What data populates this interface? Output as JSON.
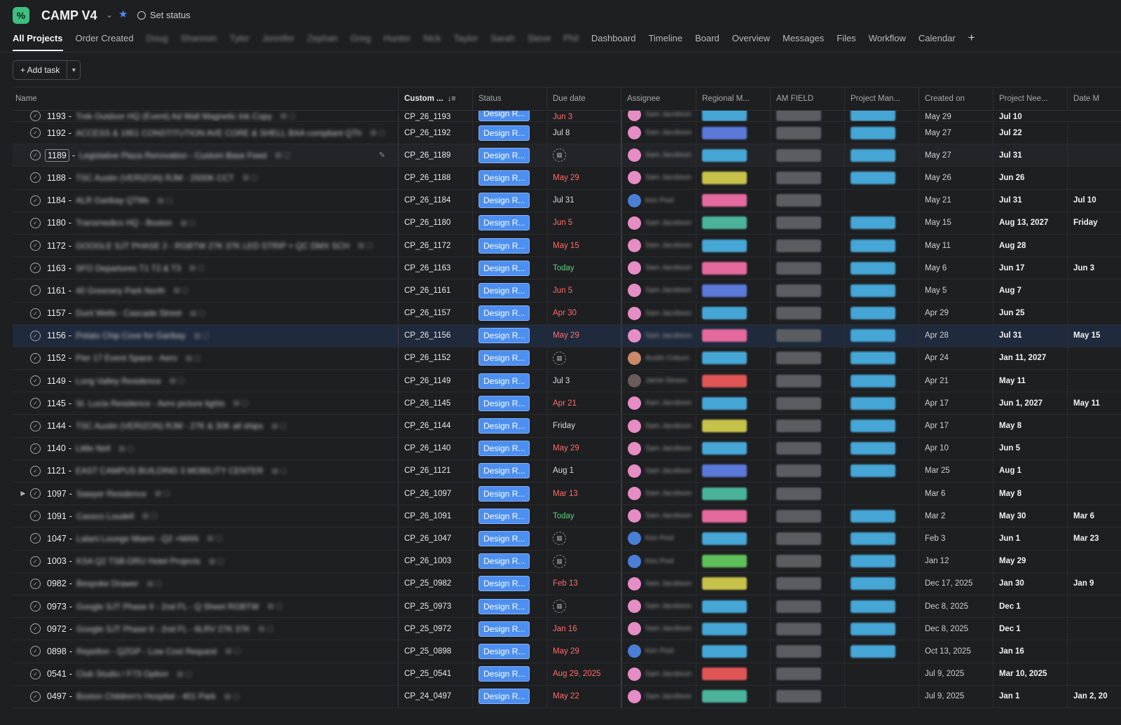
{
  "header": {
    "app_icon_glyph": "%",
    "project_title": "CAMP V4",
    "set_status": "Set status",
    "tabs": [
      {
        "label": "All Projects",
        "active": true,
        "blur": false
      },
      {
        "label": "Order Created",
        "active": false,
        "blur": false
      },
      {
        "label": "Doug",
        "active": false,
        "blur": true
      },
      {
        "label": "Shannon",
        "active": false,
        "blur": true
      },
      {
        "label": "Tyler",
        "active": false,
        "blur": true
      },
      {
        "label": "Jennifer",
        "active": false,
        "blur": true
      },
      {
        "label": "Zephan",
        "active": false,
        "blur": true
      },
      {
        "label": "Greg",
        "active": false,
        "blur": true
      },
      {
        "label": "Hunter",
        "active": false,
        "blur": true
      },
      {
        "label": "Nick",
        "active": false,
        "blur": true
      },
      {
        "label": "Taylor",
        "active": false,
        "blur": true
      },
      {
        "label": "Sarah",
        "active": false,
        "blur": true
      },
      {
        "label": "Steve",
        "active": false,
        "blur": true
      },
      {
        "label": "Phil",
        "active": false,
        "blur": true
      },
      {
        "label": "Dashboard",
        "active": false,
        "blur": false
      },
      {
        "label": "Timeline",
        "active": false,
        "blur": false
      },
      {
        "label": "Board",
        "active": false,
        "blur": false
      },
      {
        "label": "Overview",
        "active": false,
        "blur": false
      },
      {
        "label": "Messages",
        "active": false,
        "blur": false
      },
      {
        "label": "Files",
        "active": false,
        "blur": false
      },
      {
        "label": "Workflow",
        "active": false,
        "blur": false
      },
      {
        "label": "Calendar",
        "active": false,
        "blur": false
      }
    ]
  },
  "toolbar": {
    "add_task_label": "+ Add task"
  },
  "columns": [
    "Name",
    "Custom ...",
    "Status",
    "Due date",
    "Assignee",
    "Regional M...",
    "AM FIELD",
    "Project Man...",
    "Created on",
    "Project Nee...",
    "Date M"
  ],
  "colors": {
    "status_pill": "#4c8ff0",
    "overdue": "#ff6b6b",
    "today": "#5ad07c",
    "tag_blue": "#46a7d6",
    "tag_pink": "#e46a9d",
    "tag_yellow": "#c7c24a",
    "tag_teal": "#4ab39a",
    "tag_green": "#5fbf5a",
    "tag_red": "#e05656",
    "tag_indigo": "#5b79d9",
    "avatar_pink": "#e58dc4",
    "avatar_blue": "#4a7fd6"
  },
  "rows": [
    {
      "num": "1193",
      "title": "Trek Outdoor HQ (Event) Ad Wall Magnetic Ink Copy",
      "custom": "CP_26_1193",
      "status": "Design R...",
      "due": "Jun 3",
      "due_type": "red",
      "avatar": "#e58dc4",
      "assignee": "Sam Jacobson",
      "region": "#46a7d6",
      "pm": "#46a7d6",
      "created": "May 29",
      "need": "Jul 10",
      "datem": "",
      "partial": true
    },
    {
      "num": "1192",
      "title": "ACCESS & 1951 CONSTITUTION AVE CORE & SHELL BAA compliant QTh",
      "custom": "CP_26_1192",
      "status": "Design R...",
      "due": "Jul 8",
      "due_type": "gray",
      "avatar": "#e58dc4",
      "assignee": "Sam Jacobson",
      "region": "#5b79d9",
      "pm": "#46a7d6",
      "created": "May 27",
      "need": "Jul 22",
      "datem": ""
    },
    {
      "num": "1189",
      "title": "Legislative Plaza Renovation - Custom Base Feed",
      "custom": "CP_26_1189",
      "status": "Design R...",
      "due": "",
      "due_type": "icon",
      "avatar": "#e58dc4",
      "assignee": "Sam Jacobson",
      "region": "#46a7d6",
      "pm": "#46a7d6",
      "created": "May 27",
      "need": "Jul 31",
      "datem": "",
      "hover": true
    },
    {
      "num": "1188",
      "title": "TSC Austin (VERIZON) RJM - 2500K CCT",
      "custom": "CP_26_1188",
      "status": "Design R...",
      "due": "May 29",
      "due_type": "red",
      "avatar": "#e58dc4",
      "assignee": "Sam Jacobson",
      "region": "#c7c24a",
      "pm": "#46a7d6",
      "created": "May 26",
      "need": "Jun 26",
      "datem": ""
    },
    {
      "num": "1184",
      "title": "ALR Garibay QTMs",
      "custom": "CP_26_1184",
      "status": "Design R...",
      "due": "Jul 31",
      "due_type": "gray",
      "avatar": "#4a7fd6",
      "assignee": "Ken Pool",
      "region": "#e46a9d",
      "pm": "",
      "created": "May 21",
      "need": "Jul 31",
      "datem": "Jul 10"
    },
    {
      "num": "1180",
      "title": "Transmedics HQ - Boston",
      "custom": "CP_26_1180",
      "status": "Design R...",
      "due": "Jun 5",
      "due_type": "red",
      "avatar": "#e58dc4",
      "assignee": "Sam Jacobson",
      "region": "#4ab39a",
      "pm": "#46a7d6",
      "created": "May 15",
      "need": "Aug 13, 2027",
      "datem": "Friday"
    },
    {
      "num": "1172",
      "title": "GOOGLE SJT PHASE 2 - RGBTW 27K 37K LED STRIP + QC DMX SCH",
      "custom": "CP_26_1172",
      "status": "Design R...",
      "due": "May 15",
      "due_type": "red",
      "avatar": "#e58dc4",
      "assignee": "Sam Jacobson",
      "region": "#46a7d6",
      "pm": "#46a7d6",
      "created": "May 11",
      "need": "Aug 28",
      "datem": ""
    },
    {
      "num": "1163",
      "title": "SFO Departures T1 T2 & T3",
      "custom": "CP_26_1163",
      "status": "Design R...",
      "due": "Today",
      "due_type": "green",
      "avatar": "#e58dc4",
      "assignee": "Sam Jacobson",
      "region": "#e46a9d",
      "pm": "#46a7d6",
      "created": "May 6",
      "need": "Jun 17",
      "datem": "Jun 3"
    },
    {
      "num": "1161",
      "title": "40 Greenery Park North",
      "custom": "CP_26_1161",
      "status": "Design R...",
      "due": "Jun 5",
      "due_type": "red",
      "avatar": "#e58dc4",
      "assignee": "Sam Jacobson",
      "region": "#5b79d9",
      "pm": "#46a7d6",
      "created": "May 5",
      "need": "Aug 7",
      "datem": ""
    },
    {
      "num": "1157",
      "title": "Dunt Wells - Cascade Street",
      "custom": "CP_26_1157",
      "status": "Design R...",
      "due": "Apr 30",
      "due_type": "red",
      "avatar": "#e58dc4",
      "assignee": "Sam Jacobson",
      "region": "#46a7d6",
      "pm": "#46a7d6",
      "created": "Apr 29",
      "need": "Jun 25",
      "datem": ""
    },
    {
      "num": "1156",
      "title": "Potato Chip Cove for Garibay",
      "custom": "CP_26_1156",
      "status": "Design R...",
      "due": "May 29",
      "due_type": "red",
      "avatar": "#e58dc4",
      "assignee": "Sam Jacobson",
      "region": "#e46a9d",
      "pm": "#46a7d6",
      "created": "Apr 28",
      "need": "Jul 31",
      "datem": "May 15",
      "highlight": true
    },
    {
      "num": "1152",
      "title": "Pier 17 Event Space - Aero",
      "custom": "CP_26_1152",
      "status": "Design R...",
      "due": "",
      "due_type": "icon",
      "avatar": "#c98a6a",
      "assignee": "Austin Coburn",
      "region": "#46a7d6",
      "pm": "#46a7d6",
      "created": "Apr 24",
      "need": "Jan 11, 2027",
      "datem": ""
    },
    {
      "num": "1149",
      "title": "Long Valley Residence",
      "custom": "CP_26_1149",
      "status": "Design R...",
      "due": "Jul 3",
      "due_type": "gray",
      "avatar": "#6b5b5b",
      "assignee": "Jamie Dewes",
      "region": "#e05656",
      "pm": "#46a7d6",
      "created": "Apr 21",
      "need": "May 11",
      "datem": ""
    },
    {
      "num": "1145",
      "title": "St. Lucia Residence - Aero picture lights",
      "custom": "CP_26_1145",
      "status": "Design R...",
      "due": "Apr 21",
      "due_type": "red",
      "avatar": "#e58dc4",
      "assignee": "Sam Jacobson",
      "region": "#46a7d6",
      "pm": "#46a7d6",
      "created": "Apr 17",
      "need": "Jun 1, 2027",
      "datem": "May 11"
    },
    {
      "num": "1144",
      "title": "TSC Austin (VERIZON) RJM - 27K & 30K all ships",
      "custom": "CP_26_1144",
      "status": "Design R...",
      "due": "Friday",
      "due_type": "gray",
      "avatar": "#e58dc4",
      "assignee": "Sam Jacobson",
      "region": "#c7c24a",
      "pm": "#46a7d6",
      "created": "Apr 17",
      "need": "May 8",
      "datem": ""
    },
    {
      "num": "1140",
      "title": "Little Nell",
      "custom": "CP_26_1140",
      "status": "Design R...",
      "due": "May 29",
      "due_type": "red",
      "avatar": "#e58dc4",
      "assignee": "Sam Jacobson",
      "region": "#46a7d6",
      "pm": "#46a7d6",
      "created": "Apr 10",
      "need": "Jun 5",
      "datem": ""
    },
    {
      "num": "1121",
      "title": "EAST CAMPUS BUILDING 3 MOBILITY CENTER",
      "custom": "CP_26_1121",
      "status": "Design R...",
      "due": "Aug 1",
      "due_type": "gray",
      "avatar": "#e58dc4",
      "assignee": "Sam Jacobson",
      "region": "#5b79d9",
      "pm": "#46a7d6",
      "created": "Mar 25",
      "need": "Aug 1",
      "datem": ""
    },
    {
      "num": "1097",
      "title": "Sawyer Residence",
      "custom": "CP_26_1097",
      "status": "Design R...",
      "due": "Mar 13",
      "due_type": "red",
      "avatar": "#e58dc4",
      "assignee": "Sam Jacobson",
      "region": "#4ab39a",
      "pm": "",
      "created": "Mar 6",
      "need": "May 8",
      "datem": "",
      "expander": true
    },
    {
      "num": "1091",
      "title": "Cassco Loudell",
      "custom": "CP_26_1091",
      "status": "Design R...",
      "due": "Today",
      "due_type": "green",
      "avatar": "#e58dc4",
      "assignee": "Sam Jacobson",
      "region": "#e46a9d",
      "pm": "#46a7d6",
      "created": "Mar 2",
      "need": "May 30",
      "datem": "Mar 6"
    },
    {
      "num": "1047",
      "title": "Lalani Lounge Miami - Q2 +MAN",
      "custom": "CP_26_1047",
      "status": "Design R...",
      "due": "",
      "due_type": "icon",
      "avatar": "#4a7fd6",
      "assignee": "Ken Pool",
      "region": "#46a7d6",
      "pm": "#46a7d6",
      "created": "Feb 3",
      "need": "Jun 1",
      "datem": "Mar 23"
    },
    {
      "num": "1003",
      "title": "KSA Q2 TSB-DRU Hotel Projects",
      "custom": "CP_26_1003",
      "status": "Design R...",
      "due": "",
      "due_type": "icon",
      "avatar": "#4a7fd6",
      "assignee": "Ken Pool",
      "region": "#5fbf5a",
      "pm": "#46a7d6",
      "created": "Jan 12",
      "need": "May 29",
      "datem": ""
    },
    {
      "num": "0982",
      "title": "Bespoke Drawer",
      "custom": "CP_25_0982",
      "status": "Design R...",
      "due": "Feb 13",
      "due_type": "red",
      "avatar": "#e58dc4",
      "assignee": "Sam Jacobson",
      "region": "#c7c24a",
      "pm": "#46a7d6",
      "created": "Dec 17, 2025",
      "need": "Jan 30",
      "datem": "Jan 9"
    },
    {
      "num": "0973",
      "title": "Google SJT Phase II - 2nd FL - Q Sheet RGBTW",
      "custom": "CP_25_0973",
      "status": "Design R...",
      "due": "",
      "due_type": "icon",
      "avatar": "#e58dc4",
      "assignee": "Sam Jacobson",
      "region": "#46a7d6",
      "pm": "#46a7d6",
      "created": "Dec 8, 2025",
      "need": "Dec 1",
      "datem": ""
    },
    {
      "num": "0972",
      "title": "Google SJT Phase II - 2nd FL - 6LRV 27K 37K",
      "custom": "CP_25_0972",
      "status": "Design R...",
      "due": "Jan 16",
      "due_type": "red",
      "avatar": "#e58dc4",
      "assignee": "Sam Jacobson",
      "region": "#46a7d6",
      "pm": "#46a7d6",
      "created": "Dec 8, 2025",
      "need": "Dec 1",
      "datem": ""
    },
    {
      "num": "0898",
      "title": "Repellon - QZGP - Low Cost Request",
      "custom": "CP_25_0898",
      "status": "Design R...",
      "due": "May 29",
      "due_type": "red",
      "avatar": "#4a7fd6",
      "assignee": "Ken Pool",
      "region": "#46a7d6",
      "pm": "#46a7d6",
      "created": "Oct 13, 2025",
      "need": "Jan 16",
      "datem": ""
    },
    {
      "num": "0541",
      "title": "Club Studio / F73 Option",
      "custom": "CP_25_0541",
      "status": "Design R...",
      "due": "Aug 29, 2025",
      "due_type": "red",
      "avatar": "#e58dc4",
      "assignee": "Sam Jacobson",
      "region": "#e05656",
      "pm": "",
      "created": "Jul 9, 2025",
      "need": "Mar 10, 2025",
      "datem": ""
    },
    {
      "num": "0497",
      "title": "Boston Children's Hospital - 401 Park",
      "custom": "CP_24_0497",
      "status": "Design R...",
      "due": "May 22",
      "due_type": "red",
      "avatar": "#e58dc4",
      "assignee": "Sam Jacobson",
      "region": "#4ab39a",
      "pm": "",
      "created": "Jul 9, 2025",
      "need": "Jan 1",
      "datem": "Jan 2, 20"
    }
  ]
}
